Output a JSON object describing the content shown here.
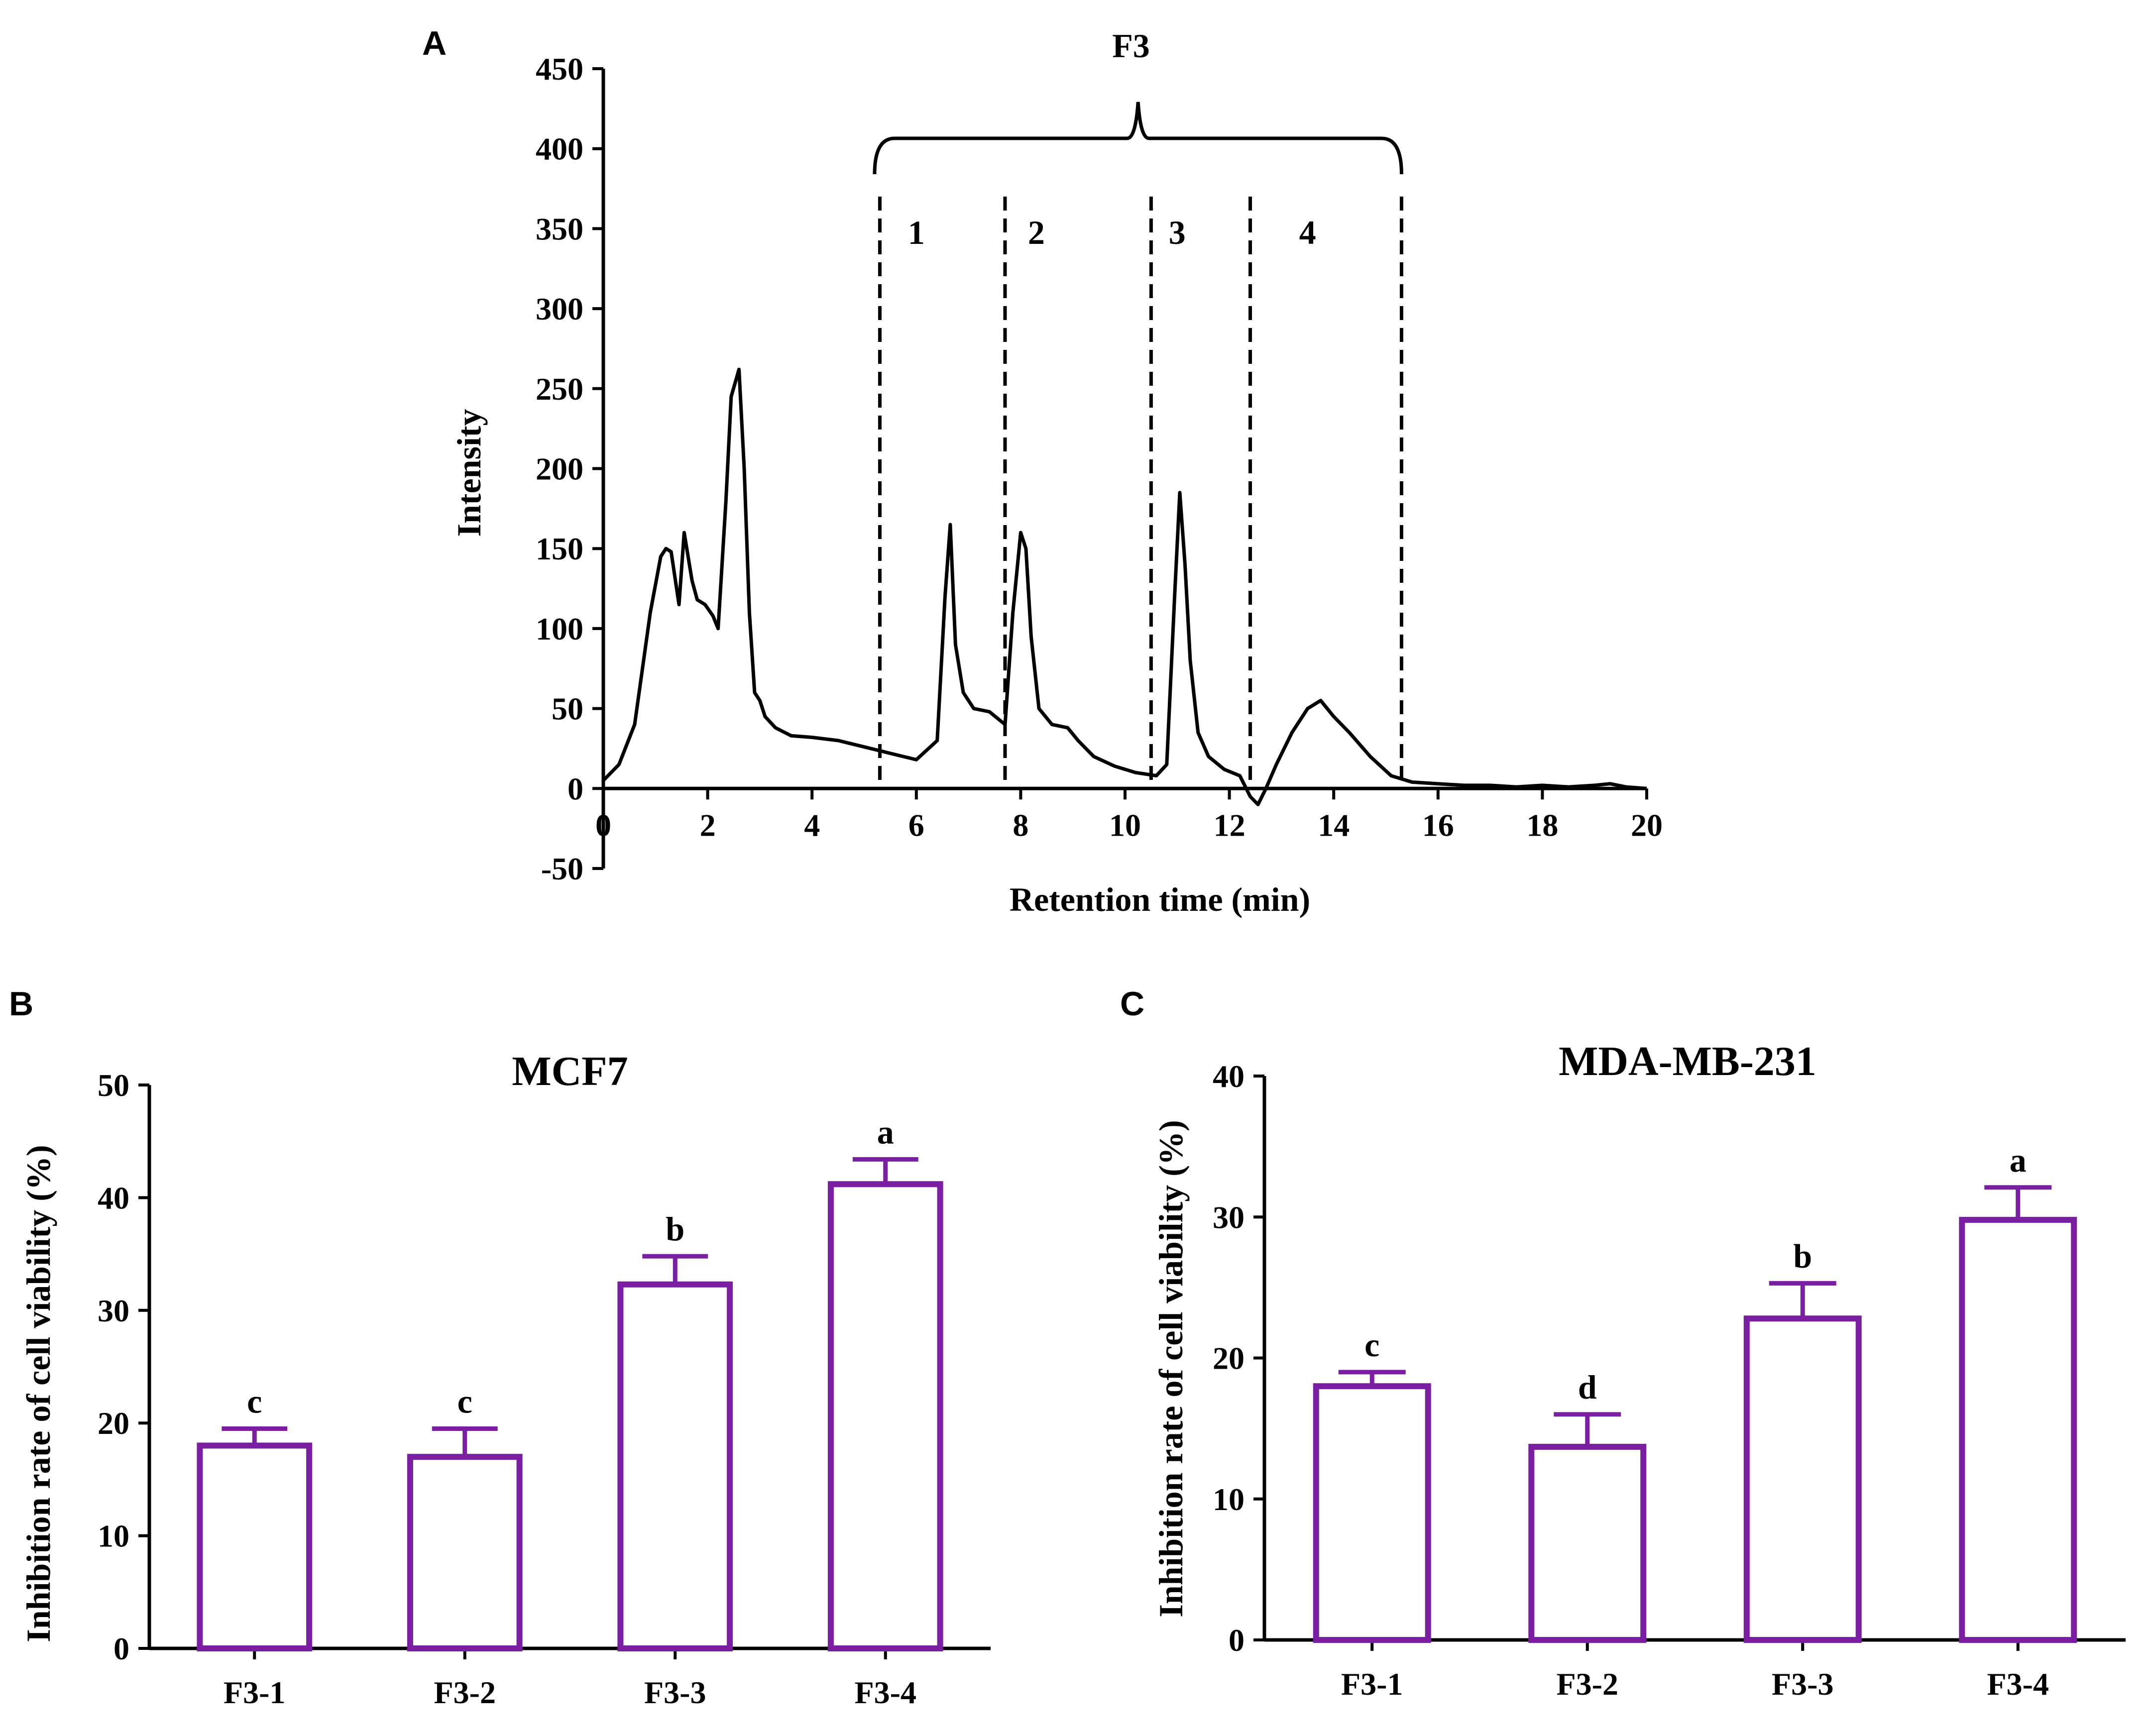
{
  "chart_data": [
    {
      "panel": "A",
      "type": "line",
      "xlabel": "Retention time (min)",
      "ylabel": "Intensity",
      "xlim": [
        0,
        20
      ],
      "ylim": [
        -50,
        450
      ],
      "xticks": [
        0,
        2,
        4,
        6,
        8,
        10,
        12,
        14,
        16,
        18,
        20
      ],
      "yticks": [
        -50,
        0,
        50,
        100,
        150,
        200,
        250,
        300,
        350,
        400,
        450
      ],
      "bracket_label": "F3",
      "bracket_range": [
        5.2,
        15.3
      ],
      "fraction_boundaries": [
        5.3,
        7.7,
        10.5,
        12.4,
        15.3
      ],
      "fraction_labels": [
        {
          "text": "1",
          "x": 6.0
        },
        {
          "text": "2",
          "x": 8.3
        },
        {
          "text": "3",
          "x": 11.0
        },
        {
          "text": "4",
          "x": 13.5
        }
      ],
      "x": [
        0,
        0.3,
        0.6,
        0.9,
        1.1,
        1.2,
        1.3,
        1.45,
        1.55,
        1.7,
        1.8,
        1.95,
        2.1,
        2.2,
        2.35,
        2.45,
        2.6,
        2.7,
        2.8,
        2.9,
        3.0,
        3.1,
        3.3,
        3.6,
        4.0,
        4.5,
        5.0,
        5.5,
        6.0,
        6.4,
        6.55,
        6.65,
        6.75,
        6.9,
        7.1,
        7.4,
        7.7,
        7.85,
        8.0,
        8.1,
        8.2,
        8.35,
        8.6,
        8.9,
        9.1,
        9.4,
        9.8,
        10.2,
        10.6,
        10.8,
        10.95,
        11.05,
        11.15,
        11.25,
        11.4,
        11.6,
        11.9,
        12.2,
        12.4,
        12.55,
        12.7,
        12.9,
        13.2,
        13.5,
        13.75,
        14.0,
        14.3,
        14.7,
        15.1,
        15.5,
        16.0,
        16.5,
        17.0,
        17.5,
        18.0,
        18.5,
        19.0,
        19.3,
        19.6,
        20.0
      ],
      "y": [
        5,
        15,
        40,
        110,
        145,
        150,
        148,
        115,
        160,
        130,
        118,
        115,
        108,
        100,
        180,
        245,
        262,
        200,
        110,
        60,
        55,
        45,
        38,
        33,
        32,
        30,
        26,
        22,
        18,
        30,
        120,
        165,
        90,
        60,
        50,
        48,
        40,
        110,
        160,
        150,
        95,
        50,
        40,
        38,
        30,
        20,
        14,
        10,
        8,
        15,
        120,
        185,
        140,
        80,
        35,
        20,
        12,
        8,
        -5,
        -10,
        0,
        15,
        35,
        50,
        55,
        45,
        35,
        20,
        8,
        4,
        3,
        2,
        2,
        1,
        2,
        1,
        2,
        3,
        1,
        0
      ]
    },
    {
      "panel": "B",
      "type": "bar",
      "title": "MCF7",
      "ylabel": "Inhibition rate of cell viability (%)",
      "ylim": [
        0,
        50
      ],
      "yticks": [
        0,
        10,
        20,
        30,
        40,
        50
      ],
      "categories": [
        "F3-1",
        "F3-2",
        "F3-3",
        "F3-4"
      ],
      "values": [
        18,
        17,
        32.3,
        41.2
      ],
      "errors": [
        1.5,
        2.5,
        2.5,
        2.2
      ],
      "significance": [
        "c",
        "c",
        "b",
        "a"
      ],
      "bar_color": "#7a1fa2"
    },
    {
      "panel": "C",
      "type": "bar",
      "title": "MDA-MB-231",
      "ylabel": "Inhibition rate of cell viability (%)",
      "ylim": [
        0,
        40
      ],
      "yticks": [
        0,
        10,
        20,
        30,
        40
      ],
      "categories": [
        "F3-1",
        "F3-2",
        "F3-3",
        "F3-4"
      ],
      "values": [
        18,
        13.7,
        22.8,
        29.8
      ],
      "errors": [
        1,
        2.3,
        2.5,
        2.3
      ],
      "significance": [
        "c",
        "d",
        "b",
        "a"
      ],
      "bar_color": "#7a1fa2"
    }
  ],
  "panel_letters": [
    "A",
    "B",
    "C"
  ]
}
